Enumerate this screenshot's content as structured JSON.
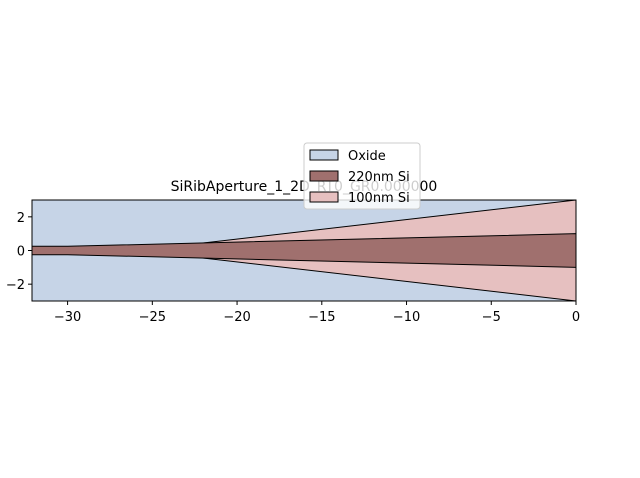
{
  "chart_data": {
    "type": "polygon",
    "title": "SiRibAperture_1_2D_RT0_GR0.000000",
    "xlim": [
      -32.1,
      0
    ],
    "ylim": [
      -3,
      3
    ],
    "xticks": [
      {
        "value": -30,
        "label": "−30"
      },
      {
        "value": -25,
        "label": "−25"
      },
      {
        "value": -20,
        "label": "−20"
      },
      {
        "value": -15,
        "label": "−15"
      },
      {
        "value": -10,
        "label": "−10"
      },
      {
        "value": -5,
        "label": "−5"
      },
      0
    ],
    "yticks": [
      {
        "value": -2,
        "label": "−2"
      },
      0,
      2
    ],
    "legend": "upper center",
    "series": [
      {
        "name": "Oxide",
        "color": "#c6d4e7",
        "x": [
          -32.1,
          0,
          0,
          -32.1
        ],
        "y": [
          -3,
          -3,
          3,
          3
        ]
      },
      {
        "name": "220nm Si",
        "color": "#a0706e",
        "x": [
          -32.1,
          -30,
          0,
          0,
          -30,
          -32.1
        ],
        "y": [
          0.25,
          0.25,
          1,
          -1,
          -0.25,
          -0.25
        ]
      },
      {
        "name": "100nm Si",
        "color": "#e6c0c0",
        "x": [
          -25,
          0,
          0,
          -25
        ],
        "y": [
          0.1,
          3,
          -3,
          -0.1
        ]
      }
    ]
  }
}
